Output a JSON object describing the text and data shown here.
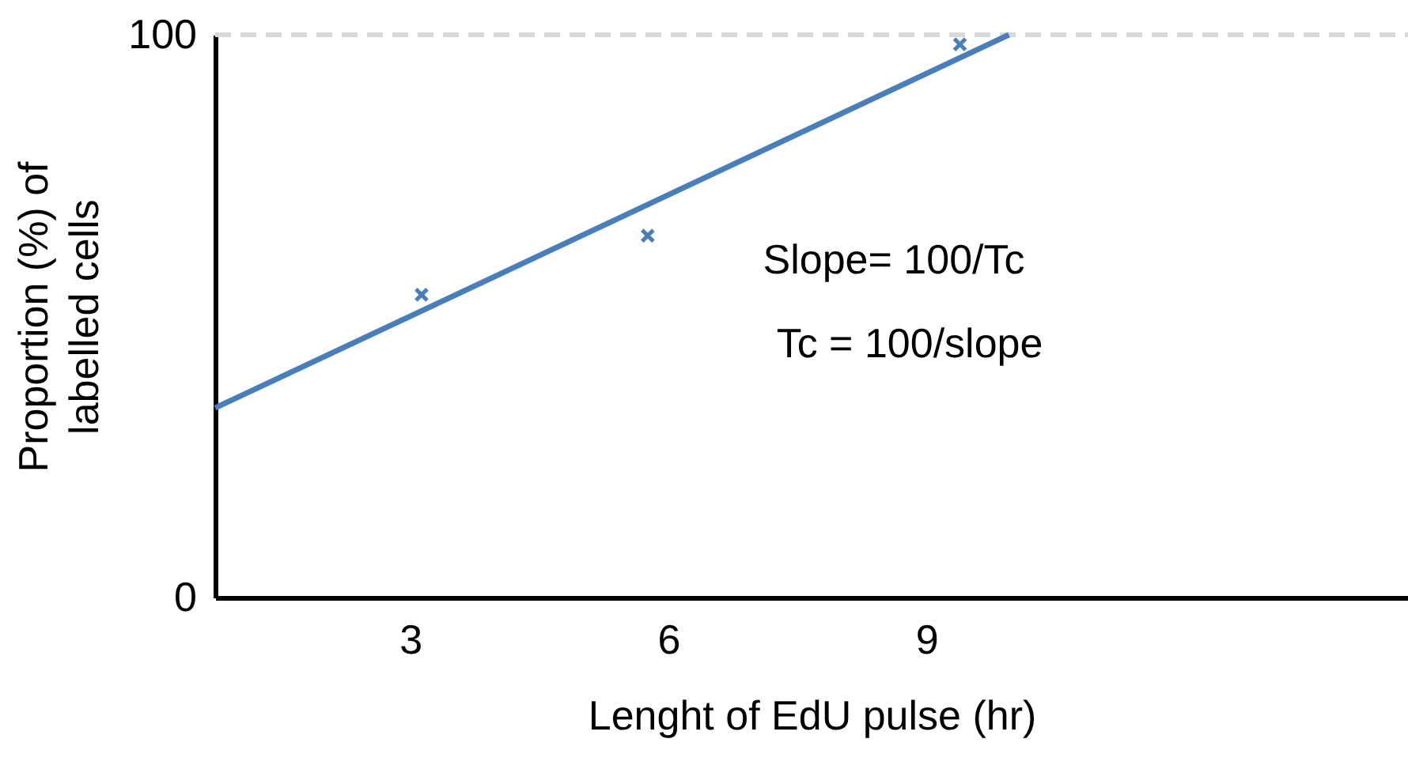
{
  "chart_data": {
    "type": "line",
    "xlabel": "Lenght of EdU pulse (hr)",
    "ylabel": "Proportion (%) of labelled cells",
    "xlim": [
      0.73,
      14.6
    ],
    "ylim": [
      0,
      100
    ],
    "xticks": [
      3,
      6,
      9
    ],
    "yticks": [
      0,
      100
    ],
    "series": [
      {
        "x": [
          0.73,
          9.96
        ],
        "values": [
          33.7,
          100
        ],
        "color": "#4a7ebb"
      },
      {
        "type": "scatter",
        "marker": "cross",
        "x": [
          3.13,
          5.76,
          9.39
        ],
        "values": [
          53.8,
          64.3,
          98.3
        ],
        "color": "#4a7ebb"
      }
    ],
    "ref_lines": [
      {
        "axis": "y",
        "value": 100,
        "color": "#d9d9d9",
        "line_style": "dashed"
      }
    ],
    "annotations": [
      "Slope= 100/Tc",
      "Tc = 100/slope"
    ]
  }
}
